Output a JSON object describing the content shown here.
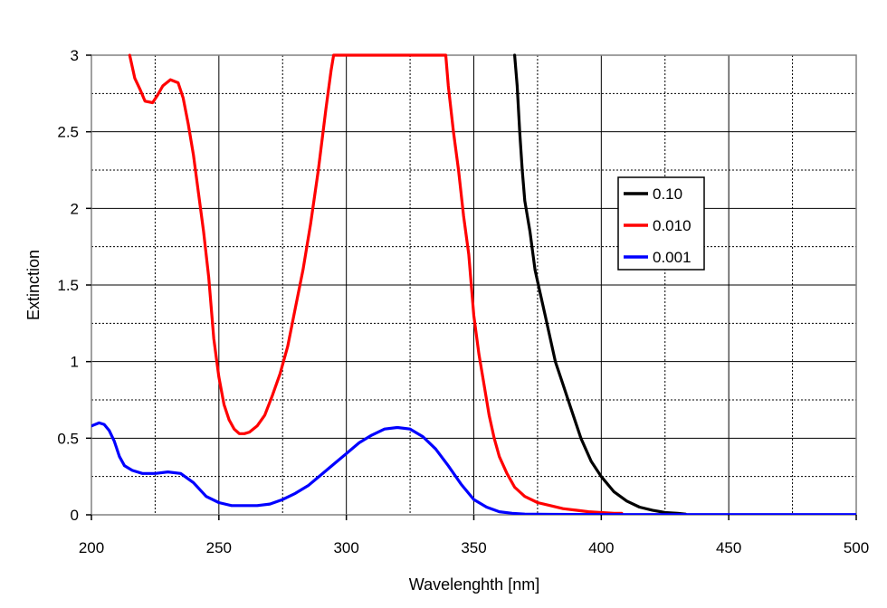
{
  "chart_data": {
    "type": "line",
    "title": "",
    "xlabel": "Wavelenghth [nm]",
    "ylabel": "Extinction",
    "xlim": [
      200,
      500
    ],
    "ylim": [
      0,
      3
    ],
    "x_ticks": [
      200,
      250,
      300,
      350,
      400,
      450,
      500
    ],
    "y_ticks": [
      0,
      0.5,
      1,
      1.5,
      2,
      2.5,
      3
    ],
    "x_tick_labels": [
      "200",
      "250",
      "300",
      "350",
      "400",
      "450",
      "500"
    ],
    "y_tick_labels": [
      "0",
      "0.5",
      "1",
      "1.5",
      "2",
      "2.5",
      "3"
    ],
    "grid": true,
    "grid_style": "major solid, minor dotted",
    "legend_placement": "upper-right inside plot",
    "series": [
      {
        "name": "0.10",
        "color": "#000000",
        "points": [
          [
            366,
            3.0
          ],
          [
            367,
            2.8
          ],
          [
            368,
            2.5
          ],
          [
            369,
            2.25
          ],
          [
            370,
            2.05
          ],
          [
            372,
            1.85
          ],
          [
            374,
            1.6
          ],
          [
            376,
            1.45
          ],
          [
            378,
            1.3
          ],
          [
            380,
            1.15
          ],
          [
            382,
            1.0
          ],
          [
            385,
            0.85
          ],
          [
            388,
            0.7
          ],
          [
            392,
            0.5
          ],
          [
            396,
            0.35
          ],
          [
            400,
            0.25
          ],
          [
            405,
            0.15
          ],
          [
            410,
            0.09
          ],
          [
            415,
            0.05
          ],
          [
            420,
            0.03
          ],
          [
            425,
            0.015
          ],
          [
            430,
            0.01
          ],
          [
            433,
            0.005
          ]
        ]
      },
      {
        "name": "0.010",
        "color": "#ff0000",
        "points": [
          [
            215,
            3.0
          ],
          [
            217,
            2.85
          ],
          [
            219,
            2.78
          ],
          [
            221,
            2.7
          ],
          [
            224,
            2.69
          ],
          [
            226,
            2.74
          ],
          [
            228,
            2.8
          ],
          [
            231,
            2.84
          ],
          [
            234,
            2.82
          ],
          [
            236,
            2.72
          ],
          [
            238,
            2.55
          ],
          [
            240,
            2.35
          ],
          [
            242,
            2.1
          ],
          [
            244,
            1.85
          ],
          [
            246,
            1.55
          ],
          [
            248,
            1.15
          ],
          [
            250,
            0.9
          ],
          [
            252,
            0.72
          ],
          [
            254,
            0.62
          ],
          [
            256,
            0.56
          ],
          [
            258,
            0.53
          ],
          [
            260,
            0.53
          ],
          [
            262,
            0.54
          ],
          [
            265,
            0.58
          ],
          [
            268,
            0.65
          ],
          [
            271,
            0.78
          ],
          [
            274,
            0.92
          ],
          [
            277,
            1.1
          ],
          [
            280,
            1.35
          ],
          [
            283,
            1.6
          ],
          [
            286,
            1.9
          ],
          [
            289,
            2.25
          ],
          [
            292,
            2.65
          ],
          [
            294,
            2.9
          ],
          [
            295,
            3.0
          ],
          [
            339,
            3.0
          ],
          [
            340,
            2.8
          ],
          [
            342,
            2.5
          ],
          [
            344,
            2.25
          ],
          [
            346,
            1.95
          ],
          [
            348,
            1.7
          ],
          [
            350,
            1.3
          ],
          [
            352,
            1.05
          ],
          [
            354,
            0.85
          ],
          [
            356,
            0.65
          ],
          [
            358,
            0.5
          ],
          [
            360,
            0.38
          ],
          [
            363,
            0.27
          ],
          [
            366,
            0.18
          ],
          [
            370,
            0.12
          ],
          [
            375,
            0.08
          ],
          [
            380,
            0.06
          ],
          [
            385,
            0.04
          ],
          [
            390,
            0.03
          ],
          [
            395,
            0.02
          ],
          [
            400,
            0.015
          ],
          [
            405,
            0.01
          ],
          [
            408,
            0.01
          ]
        ]
      },
      {
        "name": "0.001",
        "color": "#0000ff",
        "points": [
          [
            200,
            0.58
          ],
          [
            203,
            0.6
          ],
          [
            205,
            0.59
          ],
          [
            207,
            0.55
          ],
          [
            209,
            0.48
          ],
          [
            211,
            0.38
          ],
          [
            213,
            0.32
          ],
          [
            216,
            0.29
          ],
          [
            220,
            0.27
          ],
          [
            225,
            0.27
          ],
          [
            230,
            0.28
          ],
          [
            235,
            0.27
          ],
          [
            240,
            0.21
          ],
          [
            245,
            0.12
          ],
          [
            250,
            0.08
          ],
          [
            255,
            0.06
          ],
          [
            260,
            0.06
          ],
          [
            265,
            0.06
          ],
          [
            270,
            0.07
          ],
          [
            275,
            0.1
          ],
          [
            280,
            0.14
          ],
          [
            285,
            0.19
          ],
          [
            290,
            0.26
          ],
          [
            295,
            0.33
          ],
          [
            300,
            0.4
          ],
          [
            305,
            0.47
          ],
          [
            310,
            0.52
          ],
          [
            315,
            0.56
          ],
          [
            320,
            0.57
          ],
          [
            325,
            0.56
          ],
          [
            330,
            0.51
          ],
          [
            335,
            0.43
          ],
          [
            340,
            0.32
          ],
          [
            345,
            0.2
          ],
          [
            350,
            0.1
          ],
          [
            355,
            0.05
          ],
          [
            360,
            0.02
          ],
          [
            365,
            0.01
          ],
          [
            370,
            0.005
          ],
          [
            380,
            0.003
          ],
          [
            400,
            0.002
          ],
          [
            450,
            0.002
          ],
          [
            500,
            0.002
          ]
        ]
      }
    ]
  }
}
